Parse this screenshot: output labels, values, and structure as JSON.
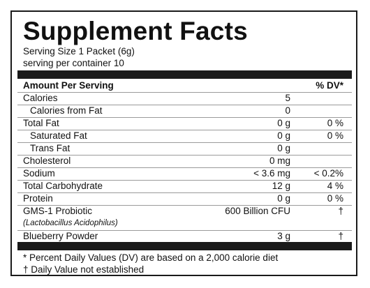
{
  "label": {
    "title": "Supplement Facts",
    "serving_size": "Serving Size 1 Packet (6g)",
    "servings_per_container": "serving per container 10",
    "header_amount": "Amount Per Serving",
    "header_dv": "% DV*",
    "rows": [
      {
        "name": "Calories",
        "amount": "5",
        "dv": ""
      },
      {
        "name": "Calories from Fat",
        "amount": "0",
        "dv": ""
      },
      {
        "name": "Total Fat",
        "amount": "0 g",
        "dv": "0 %"
      },
      {
        "name": "Saturated Fat",
        "amount": "0 g",
        "dv": "0 %"
      },
      {
        "name": "Trans Fat",
        "amount": "0 g",
        "dv": ""
      },
      {
        "name": "Cholesterol",
        "amount": "0 mg",
        "dv": ""
      },
      {
        "name": "Sodium",
        "amount": "< 3.6 mg",
        "dv": "< 0.2%"
      },
      {
        "name": "Total Carbohydrate",
        "amount": "12 g",
        "dv": "4 %"
      },
      {
        "name": "Protein",
        "amount": "0 g",
        "dv": "0 %"
      }
    ],
    "probiotic": {
      "name": "GMS-1 Probiotic",
      "sub": "(Lactobacillus Acidophilus)",
      "amount": "600 Billion CFU",
      "dv": "†"
    },
    "blueberry": {
      "name": "Blueberry Powder",
      "amount": "3 g",
      "dv": "†"
    },
    "footnote_1": "* Percent Daily Values (DV) are based on a 2,000 calorie diet",
    "footnote_2": "† Daily Value not established"
  }
}
